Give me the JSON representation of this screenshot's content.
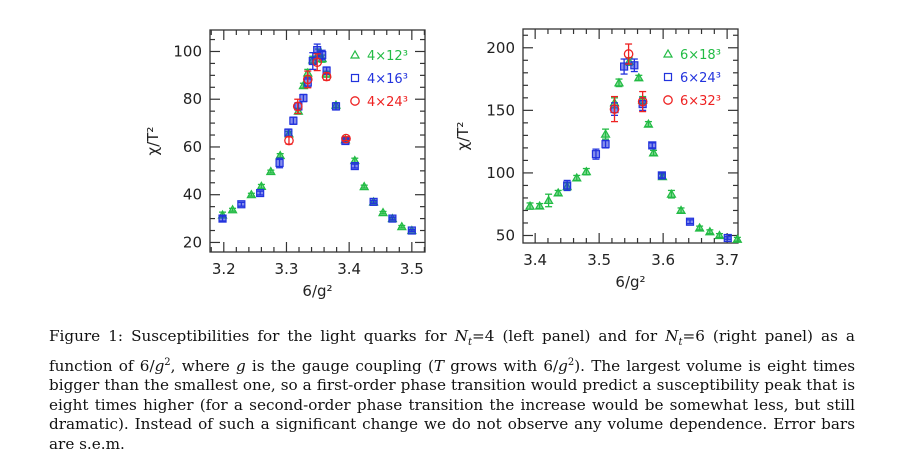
{
  "figure": {
    "caption": {
      "label": "Figure 1:",
      "text_parts": [
        " Susceptibilities for the light quarks for ",
        "N",
        "t",
        "=4 (left panel) and for ",
        "N",
        "t",
        "=6 (right panel) as a function of 6/",
        "g",
        "2",
        ", where ",
        "g",
        " is the gauge coupling (",
        "T",
        " grows with 6/",
        "g",
        "2",
        "). The largest volume is eight times bigger than the smallest one, so a first-order phase transition would predict a susceptibility peak that is eight times higher (for a second-order phase transition the increase would be somewhat less, but still dramatic).  Instead of such a significant change we do not observe any volume dependence. Error bars are s.e.m."
      ]
    }
  },
  "chart_data": [
    {
      "type": "scatter",
      "panel": "left",
      "title": "",
      "xlabel": "6/g²",
      "ylabel": "χ/T²",
      "xlim": [
        3.178,
        3.521
      ],
      "ylim": [
        16,
        109
      ],
      "xticks": [
        3.2,
        3.3,
        3.4,
        3.5
      ],
      "xtick_labels": [
        "3.2",
        "3.3",
        "3.4",
        "3.5"
      ],
      "xminor_step": 0.02,
      "yticks": [
        20,
        40,
        60,
        80,
        100
      ],
      "ytick_labels": [
        "20",
        "40",
        "60",
        "80",
        "100"
      ],
      "yminor_step": 5,
      "grid": false,
      "legend_position": "top-right",
      "series": [
        {
          "name": "4×12³",
          "marker": "triangle",
          "color": "#22bb44",
          "points": [
            [
              3.198,
              31.5,
              1.2
            ],
            [
              3.214,
              33.7,
              0.6
            ],
            [
              3.244,
              40.0,
              0.6
            ],
            [
              3.26,
              43.5,
              0.8
            ],
            [
              3.275,
              49.7,
              0.6
            ],
            [
              3.29,
              56.4,
              0.8
            ],
            [
              3.304,
              65.5,
              1.0
            ],
            [
              3.319,
              75.0,
              1.2
            ],
            [
              3.327,
              85.7,
              1.0
            ],
            [
              3.334,
              91.0,
              1.5
            ],
            [
              3.342,
              96.5,
              1.5
            ],
            [
              3.351,
              99.0,
              2.0
            ],
            [
              3.357,
              97.0,
              1.5
            ],
            [
              3.364,
              90.5,
              1.2
            ],
            [
              3.379,
              77.5,
              1.0
            ],
            [
              3.394,
              63.0,
              0.8
            ],
            [
              3.409,
              54.3,
              1.0
            ],
            [
              3.424,
              43.4,
              0.6
            ],
            [
              3.439,
              37.0,
              0.5
            ],
            [
              3.454,
              32.5,
              0.5
            ],
            [
              3.469,
              30.0,
              0.5
            ],
            [
              3.484,
              26.6,
              0.5
            ],
            [
              3.5,
              25.0,
              0.4
            ]
          ]
        },
        {
          "name": "4×16³",
          "marker": "square",
          "color": "#2233dd",
          "points": [
            [
              3.198,
              30.0,
              1.0
            ],
            [
              3.228,
              36.0,
              0.8
            ],
            [
              3.258,
              40.7,
              0.8
            ],
            [
              3.289,
              53.3,
              2.0
            ],
            [
              3.303,
              66.0,
              1.5
            ],
            [
              3.311,
              71.0,
              1.5
            ],
            [
              3.319,
              77.0,
              1.5
            ],
            [
              3.327,
              80.5,
              1.5
            ],
            [
              3.334,
              87.0,
              2.0
            ],
            [
              3.342,
              96.0,
              3.5
            ],
            [
              3.349,
              100.6,
              2.5
            ],
            [
              3.357,
              98.5,
              2.0
            ],
            [
              3.364,
              92.0,
              1.5
            ],
            [
              3.379,
              77.0,
              1.5
            ],
            [
              3.394,
              62.5,
              0.8
            ],
            [
              3.409,
              52.0,
              0.8
            ],
            [
              3.439,
              37.0,
              0.6
            ],
            [
              3.469,
              30.0,
              0.6
            ],
            [
              3.5,
              25.0,
              0.4
            ]
          ]
        },
        {
          "name": "4×24³",
          "marker": "circle",
          "color": "#ee2222",
          "points": [
            [
              3.304,
              62.7,
              1.5
            ],
            [
              3.318,
              77.0,
              3.0
            ],
            [
              3.334,
              88.3,
              3.5
            ],
            [
              3.349,
              95.5,
              3.5
            ],
            [
              3.364,
              89.5,
              1.5
            ],
            [
              3.395,
              63.5,
              0.8
            ]
          ]
        }
      ]
    },
    {
      "type": "scatter",
      "panel": "right",
      "title": "",
      "xlabel": "6/g²",
      "ylabel": "χ/T²",
      "xlim": [
        3.381,
        3.717
      ],
      "ylim": [
        44,
        215
      ],
      "xticks": [
        3.4,
        3.5,
        3.6,
        3.7
      ],
      "xtick_labels": [
        "3.4",
        "3.5",
        "3.6",
        "3.7"
      ],
      "xminor_step": 0.02,
      "yticks": [
        50,
        100,
        150,
        200
      ],
      "ytick_labels": [
        "50",
        "100",
        "150",
        "200"
      ],
      "yminor_step": 10,
      "grid": false,
      "legend_position": "top-right",
      "series": [
        {
          "name": "6×18³",
          "marker": "triangle",
          "color": "#22bb44",
          "points": [
            [
              3.392,
              73.5,
              2.5
            ],
            [
              3.407,
              73.5,
              2.0
            ],
            [
              3.421,
              78.0,
              5.0
            ],
            [
              3.436,
              84.0,
              2.0
            ],
            [
              3.45,
              89.0,
              3.0
            ],
            [
              3.465,
              96.0,
              2.0
            ],
            [
              3.48,
              101.0,
              2.5
            ],
            [
              3.51,
              131.0,
              4.0
            ],
            [
              3.524,
              156.0,
              4.0
            ],
            [
              3.531,
              172.0,
              3.0
            ],
            [
              3.547,
              189.0,
              3.0
            ],
            [
              3.562,
              176.0,
              2.0
            ],
            [
              3.568,
              158.0,
              3.0
            ],
            [
              3.577,
              139.0,
              2.0
            ],
            [
              3.585,
              116.0,
              2.0
            ],
            [
              3.599,
              97.0,
              2.0
            ],
            [
              3.613,
              83.0,
              3.0
            ],
            [
              3.628,
              70.0,
              2.0
            ],
            [
              3.657,
              56.0,
              1.5
            ],
            [
              3.673,
              53.0,
              1.5
            ],
            [
              3.688,
              50.0,
              1.5
            ],
            [
              3.716,
              47.0,
              1.5
            ]
          ]
        },
        {
          "name": "6×24³",
          "marker": "square",
          "color": "#2233dd",
          "points": [
            [
              3.45,
              90.0,
              4.0
            ],
            [
              3.495,
              115.0,
              4.0
            ],
            [
              3.51,
              123.0,
              3.0
            ],
            [
              3.524,
              151.0,
              5.0
            ],
            [
              3.539,
              185.0,
              6.0
            ],
            [
              3.555,
              186.0,
              5.0
            ],
            [
              3.568,
              155.0,
              5.0
            ],
            [
              3.583,
              122.0,
              2.0
            ],
            [
              3.598,
              98.0,
              2.0
            ],
            [
              3.642,
              61.0,
              1.5
            ],
            [
              3.701,
              48.0,
              1.0
            ]
          ]
        },
        {
          "name": "6×32³",
          "marker": "circle",
          "color": "#ee2222",
          "points": [
            [
              3.524,
              151.0,
              10.0
            ],
            [
              3.546,
              195.0,
              8.0
            ],
            [
              3.568,
              157.0,
              8.0
            ]
          ]
        }
      ]
    }
  ]
}
